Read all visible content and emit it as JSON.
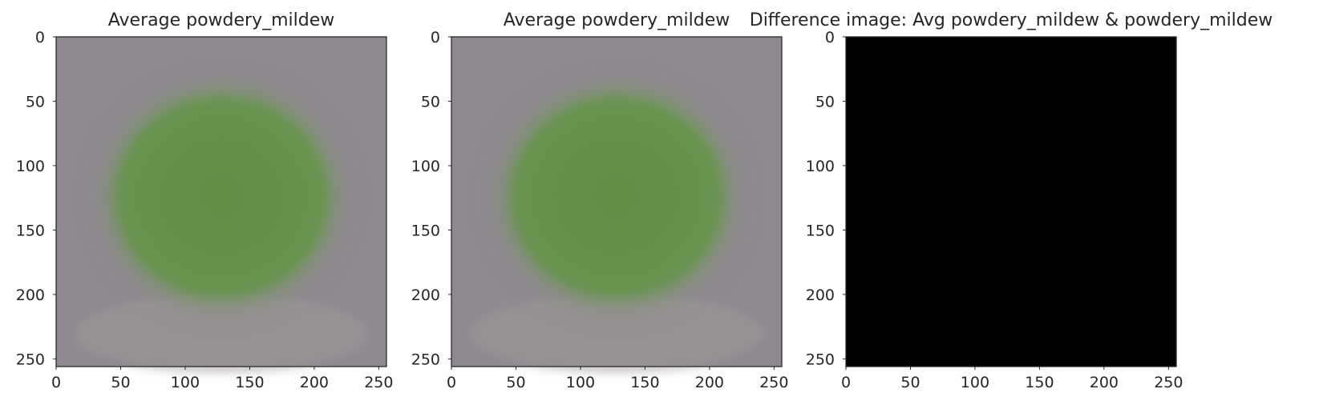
{
  "chart_data": [
    {
      "type": "image",
      "title": "Average powdery_mildew",
      "image_kind": "average-leaf",
      "xlim": [
        0,
        256
      ],
      "ylim": [
        256,
        0
      ],
      "x_ticks": [
        0,
        50,
        100,
        150,
        200,
        250
      ],
      "y_ticks": [
        0,
        50,
        100,
        150,
        200,
        250
      ],
      "colors": {
        "background": "#8f8890",
        "leaf": "#6f9a55",
        "leaf_center": "#5f8f45"
      }
    },
    {
      "type": "image",
      "title": "Average powdery_mildew",
      "image_kind": "average-leaf",
      "xlim": [
        0,
        256
      ],
      "ylim": [
        256,
        0
      ],
      "x_ticks": [
        0,
        50,
        100,
        150,
        200,
        250
      ],
      "y_ticks": [
        0,
        50,
        100,
        150,
        200,
        250
      ],
      "colors": {
        "background": "#8f8890",
        "leaf": "#6f9a55",
        "leaf_center": "#5f8f45"
      }
    },
    {
      "type": "image",
      "title": "Difference image: Avg powdery_mildew & powdery_mildew",
      "image_kind": "difference",
      "xlim": [
        0,
        256
      ],
      "ylim": [
        256,
        0
      ],
      "x_ticks": [
        0,
        50,
        100,
        150,
        200,
        250
      ],
      "y_ticks": [
        0,
        50,
        100,
        150,
        200,
        250
      ],
      "colors": {
        "background": "#000000"
      }
    }
  ]
}
